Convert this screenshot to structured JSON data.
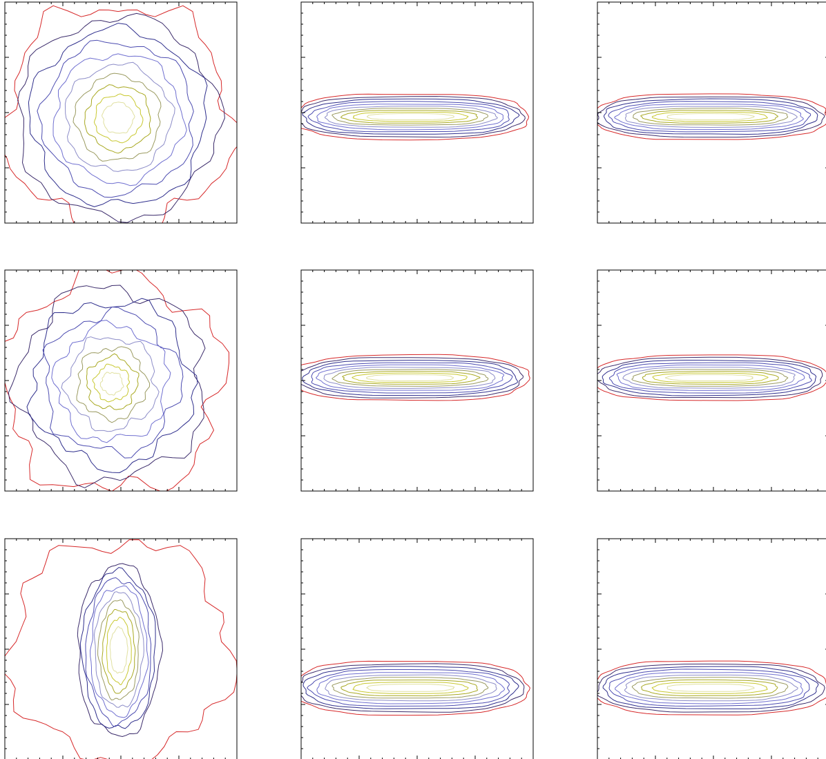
{
  "chart_data": {
    "type": "contour",
    "grid": "3x3",
    "rows": [
      [
        {
          "projection": "face-on",
          "shape": "round",
          "levels": 10
        },
        {
          "projection": "edge-on",
          "shape": "thin-disk",
          "levels": 10
        },
        {
          "projection": "edge-on",
          "shape": "thin-disk",
          "levels": 10
        }
      ],
      [
        {
          "projection": "face-on",
          "shape": "round-peaked",
          "levels": 10
        },
        {
          "projection": "edge-on",
          "shape": "thin-disk",
          "levels": 10
        },
        {
          "projection": "edge-on",
          "shape": "thin-disk",
          "levels": 10
        }
      ],
      [
        {
          "projection": "face-on",
          "shape": "elongated-bar",
          "levels": 10
        },
        {
          "projection": "edge-on",
          "shape": "thin-disk",
          "levels": 10
        },
        {
          "projection": "edge-on",
          "shape": "thin-disk",
          "levels": 10
        }
      ]
    ],
    "contour_colors": [
      "#d62728",
      "#3a2a6a",
      "#2e2e8c",
      "#4b4bb0",
      "#6f6fd0",
      "#8c8cc8",
      "#9a9a60",
      "#a8a820",
      "#c8c830",
      "#e0e0a0"
    ],
    "title": "",
    "xlabel": "",
    "ylabel": ""
  }
}
